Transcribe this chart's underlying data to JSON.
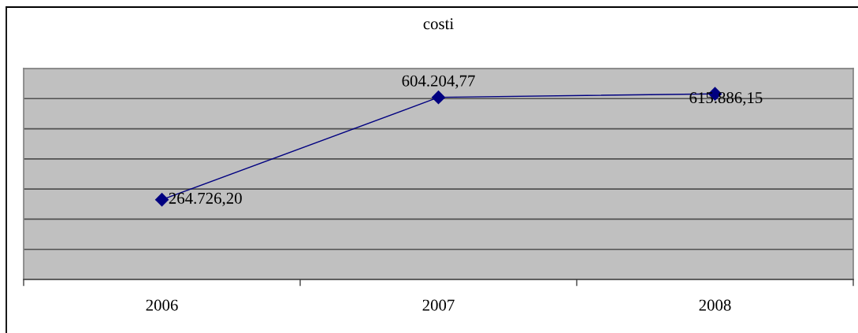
{
  "chart_data": {
    "type": "line",
    "title": "costi",
    "categories": [
      "2006",
      "2007",
      "2008"
    ],
    "series": [
      {
        "color": "#000080",
        "values": [
          264726.2,
          604204.77,
          615886.15
        ],
        "value_labels": [
          "264.726,20",
          "604.204,77",
          "615.886,15"
        ]
      }
    ],
    "ylim": [
      0,
      700000
    ],
    "yticks": [
      {
        "value": 0,
        "label": null
      },
      {
        "value": 100000,
        "label": null
      },
      {
        "value": 200000,
        "label": null
      },
      {
        "value": 300000,
        "label": null
      },
      {
        "value": 400000,
        "label": null
      },
      {
        "value": 500000,
        "label": null
      },
      {
        "value": 600000,
        "label": null
      },
      {
        "value": 700000,
        "label": null
      }
    ],
    "tick_labels": "x",
    "grid": "y",
    "marker": "diamond",
    "line_style": "solid"
  }
}
